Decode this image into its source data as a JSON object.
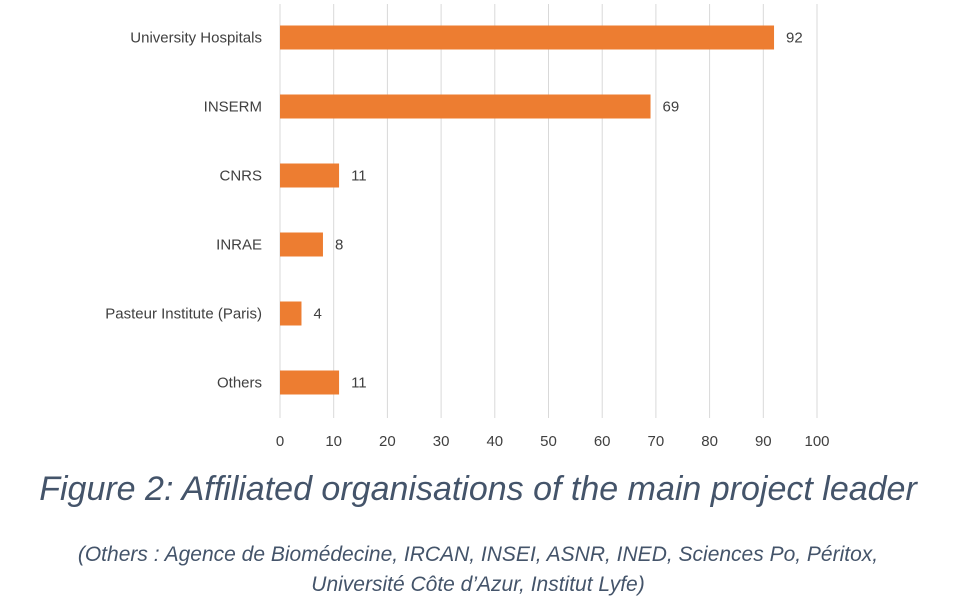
{
  "chart_data": {
    "type": "bar",
    "orientation": "horizontal",
    "categories": [
      "University Hospitals",
      "INSERM",
      "CNRS",
      "INRAE",
      "Pasteur Institute (Paris)",
      "Others"
    ],
    "values": [
      92,
      69,
      11,
      8,
      4,
      11
    ],
    "xlim": [
      0,
      100
    ],
    "xticks": [
      0,
      10,
      20,
      30,
      40,
      50,
      60,
      70,
      80,
      90,
      100
    ],
    "grid": true,
    "bar_color": "#ed7d31",
    "grid_color": "#d9d9d9",
    "data_labels": true
  },
  "caption": {
    "title": "Figure 2: Affiliated organisations of the main project leader",
    "note_line1": "(Others : Agence de Biomédecine, IRCAN, INSEI, ASNR, INED, Sciences Po, Péritox,",
    "note_line2": "Université Côte d’Azur, Institut Lyfe)"
  }
}
